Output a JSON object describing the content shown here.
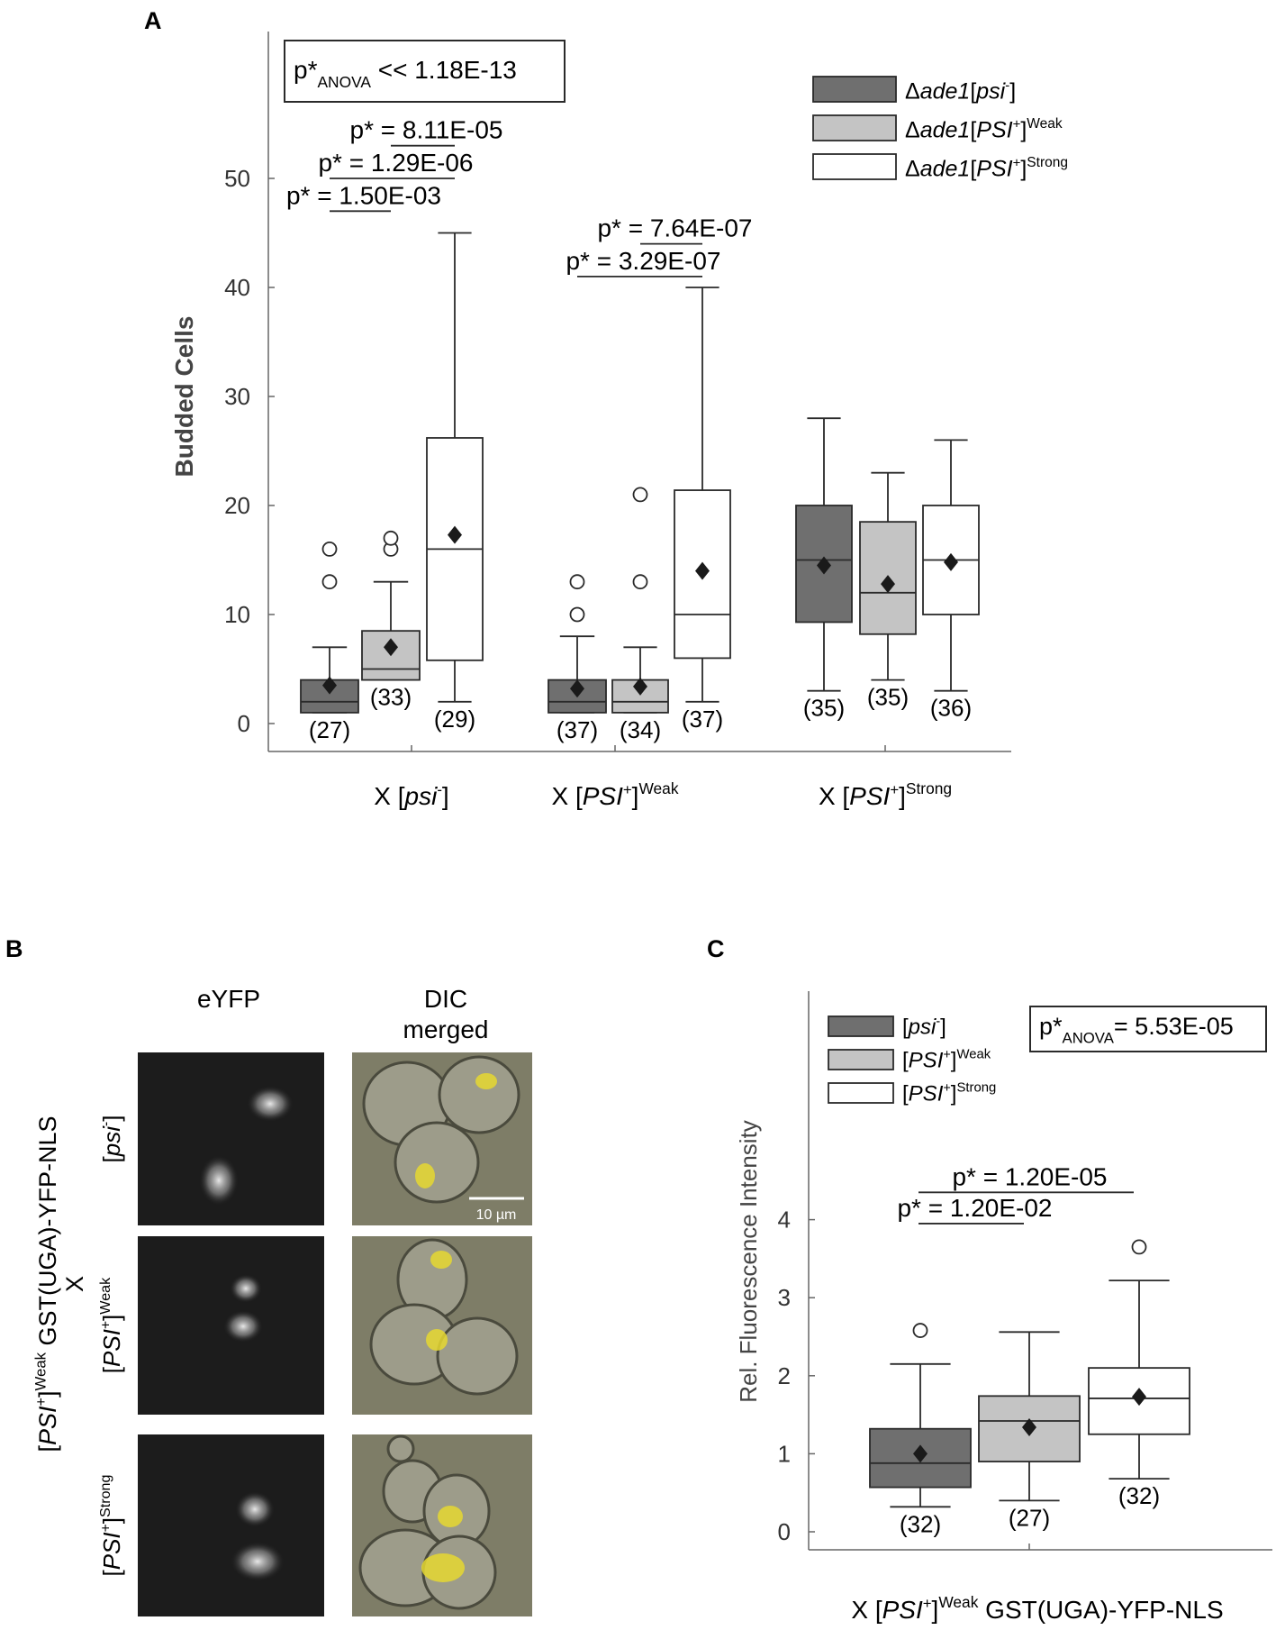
{
  "panel_labels": {
    "a": "A",
    "b": "B",
    "c": "C"
  },
  "colors": {
    "psi_minus": "#6f6f6f",
    "psi_weak": "#c4c4c4",
    "psi_strong": "#ffffff",
    "stroke": "#2a2a2a",
    "yfp": "#e6d830"
  },
  "chart_data": [
    {
      "type": "box",
      "panel": "A",
      "ylabel": "Budded Cells",
      "ylim": [
        0,
        60
      ],
      "yticks": [
        0,
        10,
        20,
        30,
        40,
        50
      ],
      "anova": {
        "prefix": "p*",
        "sub": "ANOVA",
        "rel": " << ",
        "value": "1.18E-13"
      },
      "legend": [
        {
          "pre": "Δ",
          "it": "ade1",
          "rest": "[psi",
          "sup": "-",
          "end": "]"
        },
        {
          "pre": "Δ",
          "it": "ade1",
          "rest": "[PSI",
          "sup": "+",
          "end": "]",
          "sup2": "Weak"
        },
        {
          "pre": "Δ",
          "it": "ade1",
          "rest": "[PSI",
          "sup": "+",
          "end": "]",
          "sup2": "Strong"
        }
      ],
      "groups": [
        {
          "label": "X [psi",
          "sup": "-",
          "close": "]",
          "sup2": ""
        },
        {
          "label": "X [PSI",
          "sup": "+",
          "close": "]",
          "sup2": "Weak"
        },
        {
          "label": "X [PSI",
          "sup": "+",
          "close": "]",
          "sup2": "Strong"
        }
      ],
      "boxes": [
        {
          "group": 0,
          "series": 0,
          "q1": 1,
          "median": 2,
          "q3": 4,
          "whisker_low": 1,
          "whisker_high": 7,
          "mean": 3.5,
          "outliers": [
            13,
            16
          ],
          "n": "(27)"
        },
        {
          "group": 0,
          "series": 1,
          "q1": 4,
          "median": 5,
          "q3": 8.5,
          "whisker_low": 4,
          "whisker_high": 13,
          "mean": 7,
          "outliers": [
            16,
            17
          ],
          "n": "(33)"
        },
        {
          "group": 0,
          "series": 2,
          "q1": 5.8,
          "median": 16,
          "q3": 26.2,
          "whisker_low": 2,
          "whisker_high": 45,
          "mean": 17.3,
          "outliers": [],
          "n": "(29)"
        },
        {
          "group": 1,
          "series": 0,
          "q1": 1,
          "median": 2,
          "q3": 4,
          "whisker_low": 1,
          "whisker_high": 8,
          "mean": 3.2,
          "outliers": [
            10,
            13
          ],
          "n": "(37)"
        },
        {
          "group": 1,
          "series": 1,
          "q1": 1,
          "median": 2,
          "q3": 4,
          "whisker_low": 1,
          "whisker_high": 7,
          "mean": 3.4,
          "outliers": [
            13,
            21
          ],
          "n": "(34)"
        },
        {
          "group": 1,
          "series": 2,
          "q1": 6,
          "median": 10,
          "q3": 21.4,
          "whisker_low": 2,
          "whisker_high": 40,
          "mean": 14,
          "outliers": [],
          "n": "(37)"
        },
        {
          "group": 2,
          "series": 0,
          "q1": 9.3,
          "median": 15,
          "q3": 20,
          "whisker_low": 3,
          "whisker_high": 28,
          "mean": 14.5,
          "outliers": [],
          "n": "(35)"
        },
        {
          "group": 2,
          "series": 1,
          "q1": 8.2,
          "median": 12,
          "q3": 18.5,
          "whisker_low": 4,
          "whisker_high": 23,
          "mean": 12.8,
          "outliers": [],
          "n": "(35)"
        },
        {
          "group": 2,
          "series": 2,
          "q1": 10,
          "median": 15,
          "q3": 20,
          "whisker_low": 3,
          "whisker_high": 26,
          "mean": 14.8,
          "outliers": [],
          "n": "(36)"
        }
      ],
      "pvalues": [
        {
          "text": "p* = 8.11E-05",
          "from": 1,
          "to": 2,
          "y": 53
        },
        {
          "text": "p* = 1.29E-06",
          "from": 0,
          "to": 2,
          "y": 50
        },
        {
          "text": "p* = 1.50E-03",
          "from": 0,
          "to": 1,
          "y": 47
        },
        {
          "text": "p* = 7.64E-07",
          "from": 4,
          "to": 5,
          "y": 44
        },
        {
          "text": "p* = 3.29E-07",
          "from": 3,
          "to": 5,
          "y": 41
        }
      ]
    },
    {
      "type": "box",
      "panel": "C",
      "ylabel": "Rel. Fluorescence Intensity",
      "xlabel": {
        "label": "X [PSI",
        "sup": "+",
        "close": "]",
        "sup2": "Weak",
        "rest": " GST(UGA)-YFP-NLS"
      },
      "ylim": [
        -0.2,
        6.9
      ],
      "yticks": [
        0,
        1,
        2,
        3,
        4
      ],
      "anova": {
        "prefix": "p*",
        "sub": "ANOVA",
        "rel": "= ",
        "value": "5.53E-05"
      },
      "legend": [
        {
          "pre": "",
          "it": "",
          "rest": "[psi",
          "sup": "-",
          "end": "]"
        },
        {
          "pre": "",
          "it": "",
          "rest": "[PSI",
          "sup": "+",
          "end": "]",
          "sup2": "Weak"
        },
        {
          "pre": "",
          "it": "",
          "rest": "[PSI",
          "sup": "+",
          "end": "]",
          "sup2": "Strong"
        }
      ],
      "boxes": [
        {
          "series": 0,
          "q1": 0.57,
          "median": 0.88,
          "q3": 1.32,
          "whisker_low": 0.32,
          "whisker_high": 2.15,
          "mean": 1.0,
          "outliers": [
            2.58
          ],
          "n": "(32)"
        },
        {
          "series": 1,
          "q1": 0.9,
          "median": 1.42,
          "q3": 1.74,
          "whisker_low": 0.4,
          "whisker_high": 2.56,
          "mean": 1.34,
          "outliers": [],
          "n": "(27)"
        },
        {
          "series": 2,
          "q1": 1.25,
          "median": 1.71,
          "q3": 2.1,
          "whisker_low": 0.68,
          "whisker_high": 3.22,
          "mean": 1.73,
          "outliers": [
            3.65
          ],
          "n": "(32)"
        }
      ],
      "pvalues": [
        {
          "text": "p* = 1.20E-05",
          "from": 0,
          "to": 2,
          "y": 4.35
        },
        {
          "text": "p* = 1.20E-02",
          "from": 0,
          "to": 1,
          "y": 3.95
        }
      ]
    }
  ],
  "microscopy": {
    "col_labels": {
      "eyfp": "eYFP",
      "dic_line1": "DIC",
      "dic_line2": "merged"
    },
    "side_label": {
      "a": "[PSI",
      "a_sup": "+",
      "a_close": "]",
      "a_sup2": "Weak",
      "a_rest": " GST(UGA)-YFP-NLS",
      "b": "X"
    },
    "rows": [
      {
        "label": "[psi",
        "sup": "-",
        "close": "]",
        "sup2": ""
      },
      {
        "label": "[PSI",
        "sup": "+",
        "close": "]",
        "sup2": "Weak"
      },
      {
        "label": "[PSI",
        "sup": "+",
        "close": "]",
        "sup2": "Strong"
      }
    ],
    "scale_bar": "10 µm"
  }
}
